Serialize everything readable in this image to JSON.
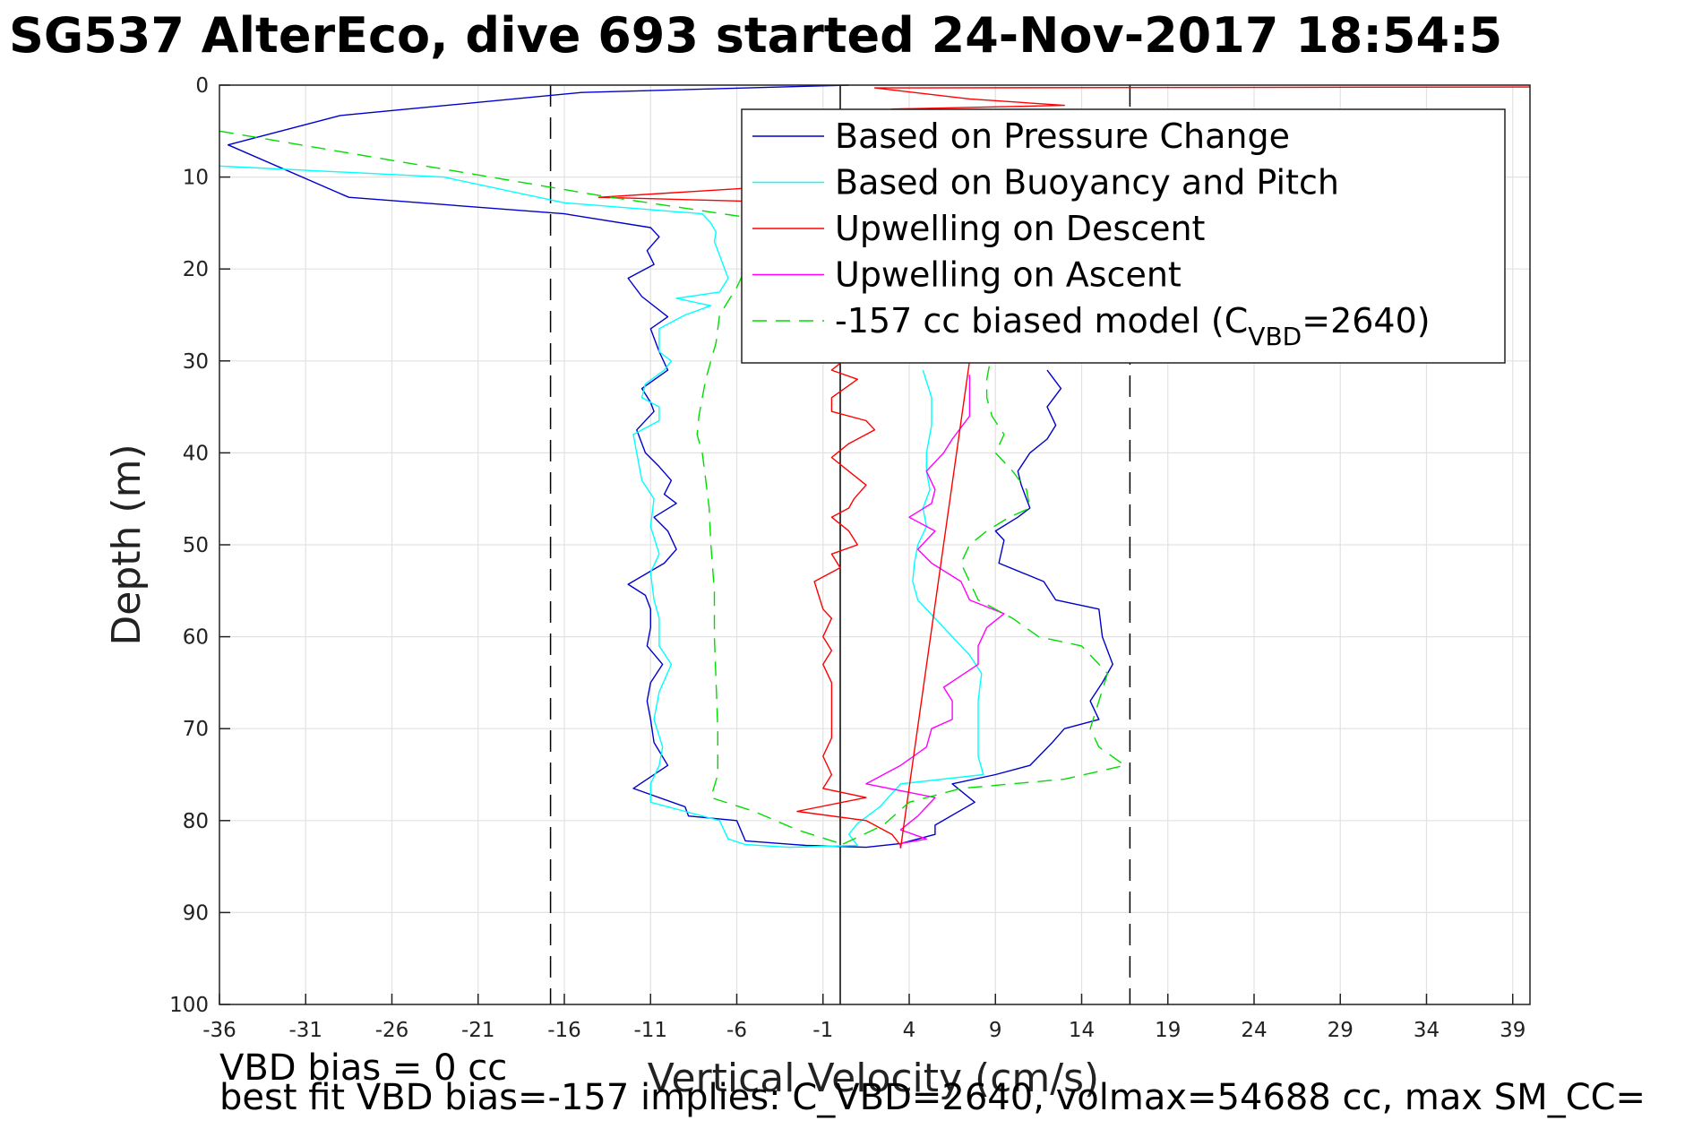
{
  "title": "SG537 AlterEco, dive 693 started 24-Nov-2017 18:54:5",
  "footer": {
    "line1": "VBD bias = 0 cc",
    "line2": "best fit VBD bias=-157 implies: C_VBD=2640, volmax=54688 cc, max SM_CC="
  },
  "chart_data": {
    "type": "line",
    "xlabel": "Vertical Velocity (cm/s)",
    "ylabel": "Depth (m)",
    "xlim": [
      -36,
      40
    ],
    "ylim": [
      0,
      100
    ],
    "y_reversed": true,
    "grid": true,
    "xticks": [
      -36,
      -31,
      -26,
      -21,
      -16,
      -11,
      -6,
      -1,
      4,
      9,
      14,
      19,
      24,
      29,
      34,
      39
    ],
    "yticks": [
      0,
      10,
      20,
      30,
      40,
      50,
      60,
      70,
      80,
      90,
      100
    ],
    "reference_lines": [
      {
        "x": -16.8,
        "style": "dashed",
        "color": "#000000"
      },
      {
        "x": 0,
        "style": "solid",
        "color": "#000000"
      },
      {
        "x": 16.8,
        "style": "dashed",
        "color": "#000000"
      }
    ],
    "legend": {
      "placement": "top-right",
      "entries": [
        {
          "label": "Based on Pressure Change",
          "color": "#0000cc",
          "style": "solid"
        },
        {
          "label": "Based on Buoyancy and Pitch",
          "color": "#00ffff",
          "style": "solid"
        },
        {
          "label": "Upwelling on Descent",
          "color": "#ff0000",
          "style": "solid"
        },
        {
          "label": "Upwelling on Ascent",
          "color": "#ff00ff",
          "style": "solid"
        },
        {
          "label": "-157 cc biased model (C",
          "sub": "VBD",
          "suffix": "=2640)",
          "color": "#00dd00",
          "style": "dashed"
        }
      ]
    },
    "series": [
      {
        "name": "Based on Pressure Change",
        "color": "#0000cc",
        "dash": false,
        "points": [
          [
            0.5,
            0
          ],
          [
            -15,
            0.8
          ],
          [
            -29,
            3.3
          ],
          [
            -35.5,
            6.5
          ],
          [
            -28.5,
            12.2
          ],
          [
            -16,
            14
          ],
          [
            -11,
            15.5
          ],
          [
            -10.5,
            16.5
          ],
          [
            -11.2,
            18
          ],
          [
            -10.8,
            19.5
          ],
          [
            -12.3,
            21
          ],
          [
            -11.5,
            23
          ],
          [
            -10,
            25.2
          ],
          [
            -11,
            26.5
          ],
          [
            -10.5,
            29
          ],
          [
            -10,
            31
          ],
          [
            -11.5,
            33
          ],
          [
            -11,
            34.5
          ],
          [
            -10.8,
            35.5
          ],
          [
            -11.8,
            37.5
          ],
          [
            -11.3,
            40
          ],
          [
            -10.5,
            41.5
          ],
          [
            -9.8,
            43
          ],
          [
            -10.2,
            44.5
          ],
          [
            -9.5,
            45.5
          ],
          [
            -10.8,
            47
          ],
          [
            -10,
            48.5
          ],
          [
            -9.5,
            50.5
          ],
          [
            -10.2,
            52
          ],
          [
            -12.3,
            54.3
          ],
          [
            -11.3,
            55.5
          ],
          [
            -11,
            57
          ],
          [
            -11,
            59
          ],
          [
            -11.2,
            61
          ],
          [
            -10.3,
            63
          ],
          [
            -11,
            65
          ],
          [
            -11.2,
            67
          ],
          [
            -11,
            69
          ],
          [
            -10.8,
            71.5
          ],
          [
            -10,
            74
          ],
          [
            -12,
            76.5
          ],
          [
            -9,
            78.5
          ],
          [
            -8.8,
            79.5
          ],
          [
            -6,
            80
          ],
          [
            -5.5,
            82.2
          ],
          [
            -2,
            82.7
          ],
          [
            1.5,
            82.9
          ],
          [
            3.5,
            82.5
          ],
          [
            5.5,
            81.5
          ],
          [
            5.5,
            80.5
          ],
          [
            7.8,
            78
          ],
          [
            6.5,
            76
          ],
          [
            9,
            75
          ],
          [
            11,
            74
          ],
          [
            12.3,
            71.5
          ],
          [
            13,
            70
          ],
          [
            15,
            69
          ],
          [
            14.5,
            67
          ],
          [
            15.2,
            65
          ],
          [
            15.8,
            63
          ],
          [
            15.2,
            60
          ],
          [
            15,
            57
          ],
          [
            12.5,
            56
          ],
          [
            11.8,
            54
          ],
          [
            9.2,
            52
          ],
          [
            9.5,
            49.5
          ],
          [
            9,
            48.5
          ],
          [
            10.3,
            47
          ],
          [
            11,
            46
          ],
          [
            10.5,
            43.5
          ],
          [
            10.3,
            42
          ],
          [
            11,
            40
          ],
          [
            12,
            38.5
          ],
          [
            12.5,
            37
          ],
          [
            12,
            35
          ],
          [
            12.8,
            33
          ],
          [
            12,
            31
          ]
        ]
      },
      {
        "name": "Based on Buoyancy and Pitch",
        "color": "#00ffff",
        "dash": false,
        "points": [
          [
            -36,
            8.8
          ],
          [
            -23,
            10
          ],
          [
            -16,
            12.8
          ],
          [
            -8,
            14
          ],
          [
            -7.5,
            15
          ],
          [
            -7.2,
            16
          ],
          [
            -7.3,
            17
          ],
          [
            -6.8,
            19.5
          ],
          [
            -6.5,
            21
          ],
          [
            -7,
            22.5
          ],
          [
            -9.5,
            23.2
          ],
          [
            -7.5,
            24
          ],
          [
            -9,
            25
          ],
          [
            -10.5,
            26.5
          ],
          [
            -10.5,
            28
          ],
          [
            -10.5,
            29
          ],
          [
            -9.8,
            30
          ],
          [
            -10.2,
            31
          ],
          [
            -11.3,
            32.5
          ],
          [
            -11.5,
            34
          ],
          [
            -10.5,
            35
          ],
          [
            -10.5,
            36.5
          ],
          [
            -12,
            38
          ],
          [
            -11.8,
            40
          ],
          [
            -11.5,
            43
          ],
          [
            -10.8,
            45
          ],
          [
            -11,
            48
          ],
          [
            -10.5,
            51
          ],
          [
            -11,
            53
          ],
          [
            -10.8,
            56
          ],
          [
            -10.5,
            58
          ],
          [
            -10.5,
            61
          ],
          [
            -9.8,
            63
          ],
          [
            -10.5,
            66
          ],
          [
            -10.8,
            69
          ],
          [
            -10.3,
            72
          ],
          [
            -10.5,
            74
          ],
          [
            -11,
            76
          ],
          [
            -11,
            78
          ],
          [
            -7,
            80
          ],
          [
            -6.5,
            82
          ],
          [
            -5.5,
            82.6
          ],
          [
            -3,
            82.9
          ],
          [
            1,
            82.7
          ],
          [
            0.5,
            81.5
          ],
          [
            1,
            80.3
          ],
          [
            2.3,
            78.5
          ],
          [
            3.5,
            76
          ],
          [
            8.3,
            75
          ],
          [
            8,
            73
          ],
          [
            8,
            70
          ],
          [
            8,
            67
          ],
          [
            8.2,
            64
          ],
          [
            7.5,
            62
          ],
          [
            6.5,
            60
          ],
          [
            5.5,
            58
          ],
          [
            4.5,
            56
          ],
          [
            4.2,
            54
          ],
          [
            4.3,
            52
          ],
          [
            4.5,
            50
          ],
          [
            5,
            48
          ],
          [
            4.8,
            46
          ],
          [
            5.2,
            44
          ],
          [
            5,
            42
          ],
          [
            5,
            40
          ],
          [
            5.3,
            37
          ],
          [
            5.3,
            34
          ],
          [
            4.8,
            31
          ]
        ]
      },
      {
        "name": "Upwelling on Descent",
        "color": "#ff0000",
        "dash": false,
        "points": [
          [
            40,
            0.2
          ],
          [
            2,
            0.3
          ],
          [
            7.5,
            1.5
          ],
          [
            13,
            2.2
          ],
          [
            3,
            2.6
          ],
          [
            2,
            3.5
          ],
          [
            4.5,
            5
          ],
          [
            8,
            7
          ],
          [
            6,
            9
          ],
          [
            5,
            10
          ],
          [
            -14,
            12.2
          ],
          [
            2,
            13
          ],
          [
            4,
            14.5
          ],
          [
            8,
            16
          ],
          [
            6,
            18
          ],
          [
            -5,
            20
          ],
          [
            -2,
            22
          ],
          [
            -3,
            24
          ],
          [
            0,
            26
          ],
          [
            -1,
            28
          ],
          [
            0.5,
            29.5
          ],
          [
            -0.5,
            31
          ],
          [
            1,
            32
          ],
          [
            -0.5,
            34
          ],
          [
            -0.5,
            35.5
          ],
          [
            1.5,
            36.5
          ],
          [
            2,
            37.5
          ],
          [
            0.5,
            39
          ],
          [
            -0.5,
            40.5
          ],
          [
            0.5,
            42
          ],
          [
            1.5,
            43.5
          ],
          [
            0.8,
            45
          ],
          [
            0.5,
            46
          ],
          [
            -0.5,
            47
          ],
          [
            0.5,
            48.5
          ],
          [
            1,
            50
          ],
          [
            -0.5,
            51
          ],
          [
            0,
            52.5
          ],
          [
            -1.5,
            54
          ],
          [
            -1,
            57
          ],
          [
            -0.5,
            58
          ],
          [
            -1,
            60
          ],
          [
            -0.5,
            61.5
          ],
          [
            -1,
            63
          ],
          [
            -0.5,
            65
          ],
          [
            -0.5,
            67
          ],
          [
            -0.5,
            69
          ],
          [
            -0.5,
            71
          ],
          [
            -1,
            73
          ],
          [
            -0.5,
            75
          ],
          [
            -1,
            76.5
          ],
          [
            1.5,
            77.5
          ],
          [
            -2.5,
            79
          ],
          [
            1.5,
            80
          ],
          [
            3,
            81.5
          ],
          [
            3.5,
            82.7
          ],
          [
            3.5,
            83
          ]
        ]
      },
      {
        "name": "Upwelling on Ascent",
        "color": "#ff00ff",
        "dash": false,
        "points": [
          [
            3.5,
            83
          ],
          [
            3.5,
            82.5
          ],
          [
            5,
            82
          ],
          [
            3.5,
            81
          ],
          [
            4.5,
            79.5
          ],
          [
            5.5,
            77.5
          ],
          [
            1.5,
            76
          ],
          [
            3.5,
            74
          ],
          [
            5,
            72
          ],
          [
            5.3,
            70
          ],
          [
            6.5,
            69
          ],
          [
            6.5,
            67
          ],
          [
            6,
            65.5
          ],
          [
            8,
            63
          ],
          [
            8,
            61
          ],
          [
            8.5,
            59
          ],
          [
            9.5,
            57.5
          ],
          [
            7.5,
            56
          ],
          [
            7,
            54
          ],
          [
            5.3,
            52
          ],
          [
            4.5,
            50.5
          ],
          [
            5.5,
            48.5
          ],
          [
            4,
            47
          ],
          [
            5.3,
            45.5
          ],
          [
            5.5,
            44
          ],
          [
            5,
            42
          ],
          [
            6,
            40
          ],
          [
            6.5,
            38.5
          ],
          [
            7.5,
            36
          ],
          [
            7.5,
            34
          ],
          [
            7.5,
            31.5
          ]
        ]
      },
      {
        "name": "",
        "color": "#ff0000",
        "dash": false,
        "points": [
          [
            3.5,
            83
          ],
          [
            7.5,
            30
          ]
        ]
      },
      {
        "name": "-157 cc biased model",
        "color": "#00dd00",
        "dash": true,
        "points": [
          [
            -36,
            5
          ],
          [
            -14,
            12
          ],
          [
            -5,
            14.5
          ],
          [
            -4.5,
            16
          ],
          [
            -5,
            18
          ],
          [
            -6,
            22
          ],
          [
            -7,
            25
          ],
          [
            -7.2,
            28
          ],
          [
            -7.5,
            30
          ],
          [
            -7.8,
            32
          ],
          [
            -8,
            34
          ],
          [
            -8.2,
            36
          ],
          [
            -8.3,
            38
          ],
          [
            -8,
            40
          ],
          [
            -7.8,
            43
          ],
          [
            -7.6,
            46
          ],
          [
            -7.5,
            50
          ],
          [
            -7.3,
            55
          ],
          [
            -7.3,
            60
          ],
          [
            -7.2,
            65
          ],
          [
            -7.1,
            70
          ],
          [
            -7.1,
            75
          ],
          [
            -7.5,
            77.5
          ],
          [
            -5,
            79
          ],
          [
            -2.5,
            81
          ],
          [
            0,
            82.5
          ],
          [
            0,
            82.7
          ],
          [
            2.5,
            80.5
          ],
          [
            4,
            78
          ],
          [
            7,
            76.5
          ],
          [
            13,
            75.5
          ],
          [
            16.5,
            74
          ],
          [
            15,
            72
          ],
          [
            14.5,
            70
          ],
          [
            15,
            67
          ],
          [
            15.5,
            64
          ],
          [
            14,
            61
          ],
          [
            11.5,
            60
          ],
          [
            10,
            58
          ],
          [
            8,
            56
          ],
          [
            7.5,
            54
          ],
          [
            7,
            52
          ],
          [
            7.5,
            50
          ],
          [
            8.5,
            48.5
          ],
          [
            9.8,
            47
          ],
          [
            11,
            46
          ],
          [
            10.8,
            44
          ],
          [
            10,
            42
          ],
          [
            9,
            40
          ],
          [
            9.5,
            38
          ],
          [
            8.8,
            36
          ],
          [
            8.5,
            34
          ],
          [
            8.5,
            32
          ],
          [
            8.7,
            30
          ]
        ]
      }
    ]
  }
}
